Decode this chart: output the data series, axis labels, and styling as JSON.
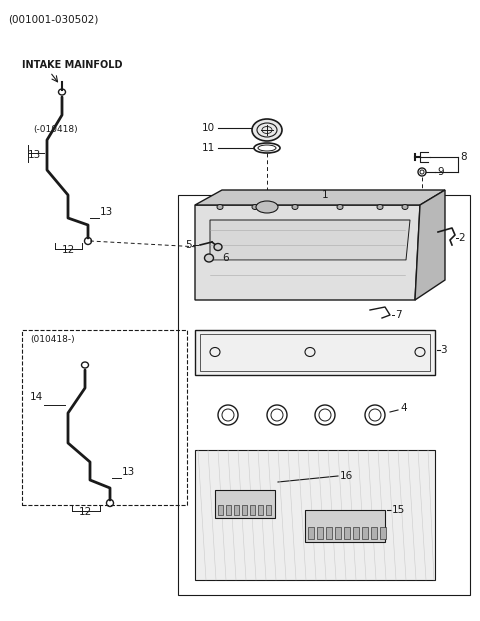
{
  "title": "(001001-030502)",
  "bg_color": "#ffffff",
  "lc": "#1a1a1a",
  "intake_label": "INTAKE MAINFOLD",
  "date_label1": "(-010418)",
  "date_label2": "(010418-)"
}
